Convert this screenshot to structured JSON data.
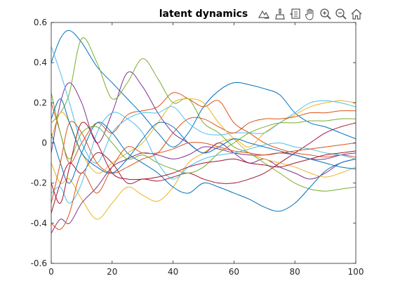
{
  "toolbar": {
    "buttons": [
      {
        "name": "export-icon"
      },
      {
        "name": "brush-icon"
      },
      {
        "name": "datatip-icon"
      },
      {
        "name": "pan-icon"
      },
      {
        "name": "zoom-in-icon"
      },
      {
        "name": "zoom-out-icon"
      },
      {
        "name": "home-icon"
      }
    ]
  },
  "chart_data": {
    "type": "line",
    "title": "latent dynamics",
    "xlabel": "",
    "ylabel": "",
    "xlim": [
      0,
      100
    ],
    "ylim": [
      -0.6,
      0.6
    ],
    "xticks": [
      "0",
      "20",
      "40",
      "60",
      "80",
      "100"
    ],
    "yticks": [
      "-0.6",
      "-0.4",
      "-0.2",
      "0",
      "0.2",
      "0.4",
      "0.6"
    ],
    "grid": false,
    "box": true,
    "colors": [
      "#0072BD",
      "#D95319",
      "#EDB120",
      "#7E2F8E",
      "#77AC30",
      "#4DBEEE",
      "#A2142F"
    ],
    "series": [
      {
        "x": [
          0,
          3,
          6,
          10,
          15,
          20,
          25,
          30,
          35,
          40,
          45,
          50,
          55,
          60,
          65,
          70,
          75,
          80,
          85,
          90,
          95,
          100
        ],
        "y": [
          0.4,
          0.52,
          0.56,
          0.5,
          0.38,
          0.3,
          0.22,
          0.14,
          0.05,
          -0.02,
          0.05,
          0.18,
          0.26,
          0.3,
          0.29,
          0.27,
          0.24,
          0.15,
          0.1,
          0.08,
          0.05,
          0.02
        ]
      },
      {
        "x": [
          0,
          3,
          6,
          10,
          15,
          20,
          25,
          30,
          35,
          40,
          45,
          50,
          55,
          60,
          65,
          70,
          75,
          80,
          85,
          90,
          95,
          100
        ],
        "y": [
          0.2,
          0.05,
          -0.1,
          0.0,
          0.1,
          0.05,
          0.14,
          0.16,
          0.18,
          0.25,
          0.22,
          0.18,
          0.21,
          0.1,
          0.05,
          0.0,
          -0.03,
          -0.05,
          -0.06,
          -0.07,
          -0.06,
          -0.07
        ]
      },
      {
        "x": [
          0,
          3,
          6,
          10,
          15,
          20,
          25,
          30,
          35,
          40,
          45,
          50,
          55,
          60,
          65,
          70,
          75,
          80,
          85,
          90,
          95,
          100
        ],
        "y": [
          -0.1,
          -0.2,
          -0.18,
          -0.28,
          -0.38,
          -0.3,
          -0.22,
          -0.26,
          -0.29,
          -0.22,
          -0.1,
          -0.05,
          0.0,
          0.02,
          -0.02,
          0.05,
          0.1,
          0.14,
          0.18,
          0.2,
          0.21,
          0.2
        ]
      },
      {
        "x": [
          0,
          3,
          6,
          10,
          15,
          20,
          25,
          30,
          35,
          40,
          45,
          50,
          55,
          60,
          65,
          70,
          75,
          80,
          85,
          90,
          95,
          100
        ],
        "y": [
          -0.05,
          0.2,
          0.3,
          0.2,
          0.0,
          0.15,
          0.35,
          0.28,
          0.15,
          0.05,
          0.0,
          -0.05,
          0.0,
          -0.05,
          -0.1,
          -0.08,
          -0.12,
          -0.15,
          -0.18,
          -0.15,
          -0.1,
          -0.08
        ]
      },
      {
        "x": [
          0,
          3,
          6,
          10,
          15,
          20,
          25,
          30,
          35,
          40,
          45,
          50,
          55,
          60,
          65,
          70,
          75,
          80,
          85,
          90,
          95,
          100
        ],
        "y": [
          0.1,
          0.15,
          0.25,
          0.52,
          0.4,
          0.22,
          0.3,
          0.42,
          0.32,
          0.2,
          0.22,
          0.1,
          0.05,
          -0.02,
          -0.05,
          -0.1,
          -0.15,
          -0.2,
          -0.23,
          -0.24,
          -0.23,
          -0.22
        ]
      },
      {
        "x": [
          0,
          3,
          6,
          10,
          15,
          20,
          25,
          30,
          35,
          40,
          45,
          50,
          55,
          60,
          65,
          70,
          75,
          80,
          85,
          90,
          95,
          100
        ],
        "y": [
          0.48,
          0.35,
          0.2,
          0.0,
          -0.1,
          0.05,
          0.12,
          0.15,
          0.15,
          0.18,
          0.1,
          0.05,
          0.04,
          0.05,
          0.05,
          0.05,
          0.1,
          0.15,
          0.2,
          0.21,
          0.2,
          0.18
        ]
      },
      {
        "x": [
          0,
          3,
          6,
          10,
          15,
          20,
          25,
          30,
          35,
          40,
          45,
          50,
          55,
          60,
          65,
          70,
          75,
          80,
          85,
          90,
          95,
          100
        ],
        "y": [
          -0.35,
          -0.2,
          -0.1,
          -0.15,
          -0.05,
          -0.1,
          -0.2,
          -0.18,
          -0.19,
          -0.17,
          -0.15,
          -0.18,
          -0.2,
          -0.2,
          -0.18,
          -0.15,
          -0.1,
          -0.05,
          0.0,
          0.05,
          0.08,
          0.1
        ]
      },
      {
        "x": [
          0,
          3,
          6,
          10,
          15,
          20,
          25,
          30,
          35,
          40,
          45,
          50,
          55,
          60,
          65,
          70,
          75,
          80,
          85,
          90,
          95,
          100
        ],
        "y": [
          0.05,
          -0.1,
          -0.2,
          -0.05,
          0.1,
          0.05,
          -0.05,
          -0.1,
          -0.15,
          -0.22,
          -0.25,
          -0.2,
          -0.22,
          -0.25,
          -0.28,
          -0.32,
          -0.34,
          -0.3,
          -0.22,
          -0.14,
          -0.1,
          -0.08
        ]
      },
      {
        "x": [
          0,
          3,
          6,
          10,
          15,
          20,
          25,
          30,
          35,
          40,
          45,
          50,
          55,
          60,
          65,
          70,
          75,
          80,
          85,
          90,
          95,
          100
        ],
        "y": [
          -0.3,
          -0.1,
          0.1,
          0.05,
          -0.1,
          -0.15,
          -0.12,
          -0.08,
          -0.05,
          0.05,
          0.12,
          0.12,
          0.08,
          0.05,
          0.1,
          0.12,
          0.12,
          0.13,
          0.15,
          0.15,
          0.16,
          0.16
        ]
      },
      {
        "x": [
          0,
          3,
          6,
          10,
          15,
          20,
          25,
          30,
          35,
          40,
          45,
          50,
          55,
          60,
          65,
          70,
          75,
          80,
          85,
          90,
          95,
          100
        ],
        "y": [
          0.02,
          0.15,
          0.1,
          -0.05,
          -0.15,
          -0.1,
          -0.05,
          0.0,
          0.1,
          0.2,
          0.22,
          0.2,
          0.1,
          0.02,
          -0.05,
          -0.08,
          -0.1,
          -0.12,
          -0.15,
          -0.17,
          -0.15,
          -0.12
        ]
      },
      {
        "x": [
          0,
          3,
          6,
          10,
          15,
          20,
          25,
          30,
          35,
          40,
          45,
          50,
          55,
          60,
          65,
          70,
          75,
          80,
          85,
          90,
          95,
          100
        ],
        "y": [
          -0.45,
          -0.38,
          -0.4,
          -0.3,
          -0.22,
          -0.12,
          -0.08,
          -0.05,
          -0.06,
          -0.08,
          -0.06,
          -0.02,
          -0.03,
          -0.05,
          -0.06,
          -0.06,
          -0.05,
          -0.06,
          -0.08,
          -0.08,
          -0.06,
          -0.05
        ]
      },
      {
        "x": [
          0,
          3,
          6,
          10,
          15,
          20,
          25,
          30,
          35,
          40,
          45,
          50,
          55,
          60,
          65,
          70,
          75,
          80,
          85,
          90,
          95,
          100
        ],
        "y": [
          0.25,
          0.05,
          -0.08,
          0.05,
          0.08,
          0.0,
          -0.08,
          -0.06,
          -0.1,
          -0.13,
          -0.15,
          -0.12,
          -0.05,
          0.0,
          0.05,
          0.08,
          0.1,
          0.1,
          0.11,
          0.11,
          0.12,
          0.12
        ]
      },
      {
        "x": [
          0,
          3,
          6,
          10,
          15,
          20,
          25,
          30,
          35,
          40,
          45,
          50,
          55,
          60,
          65,
          70,
          75,
          80,
          85,
          90,
          95,
          100
        ],
        "y": [
          -0.25,
          -0.22,
          -0.3,
          -0.2,
          0.05,
          0.15,
          0.12,
          0.05,
          -0.1,
          -0.18,
          -0.12,
          -0.08,
          -0.06,
          -0.05,
          -0.03,
          -0.01,
          0.0,
          -0.02,
          -0.03,
          -0.05,
          -0.06,
          -0.08
        ]
      },
      {
        "x": [
          0,
          3,
          6,
          10,
          15,
          20,
          25,
          30,
          35,
          40,
          45,
          50,
          55,
          60,
          65,
          70,
          75,
          80,
          85,
          90,
          95,
          100
        ],
        "y": [
          -0.2,
          -0.3,
          -0.12,
          0.1,
          0.0,
          -0.15,
          -0.18,
          -0.18,
          -0.17,
          -0.15,
          -0.12,
          -0.1,
          -0.09,
          -0.08,
          -0.1,
          -0.11,
          -0.12,
          -0.1,
          -0.08,
          -0.06,
          -0.05,
          -0.04
        ]
      },
      {
        "x": [
          0,
          3,
          6,
          10,
          15,
          20,
          25,
          30,
          35,
          40,
          45,
          50,
          55,
          60,
          65,
          70,
          75,
          80,
          85,
          90,
          95,
          100
        ],
        "y": [
          0.12,
          0.22,
          0.1,
          -0.05,
          -0.12,
          -0.15,
          -0.08,
          0.02,
          0.1,
          0.08,
          0.0,
          -0.05,
          -0.02,
          0.02,
          0.0,
          -0.02,
          -0.04,
          -0.06,
          -0.08,
          -0.1,
          -0.12,
          -0.13
        ]
      },
      {
        "x": [
          0,
          3,
          6,
          10,
          15,
          20,
          25,
          30,
          35,
          40,
          45,
          50,
          55,
          60,
          65,
          70,
          75,
          80,
          85,
          90,
          95,
          100
        ],
        "y": [
          -0.4,
          -0.43,
          -0.35,
          -0.15,
          -0.25,
          -0.12,
          -0.02,
          -0.05,
          -0.05,
          -0.03,
          0.0,
          0.0,
          -0.02,
          -0.04,
          -0.05,
          -0.06,
          -0.05,
          -0.04,
          -0.03,
          -0.02,
          -0.01,
          0.0
        ]
      }
    ]
  }
}
